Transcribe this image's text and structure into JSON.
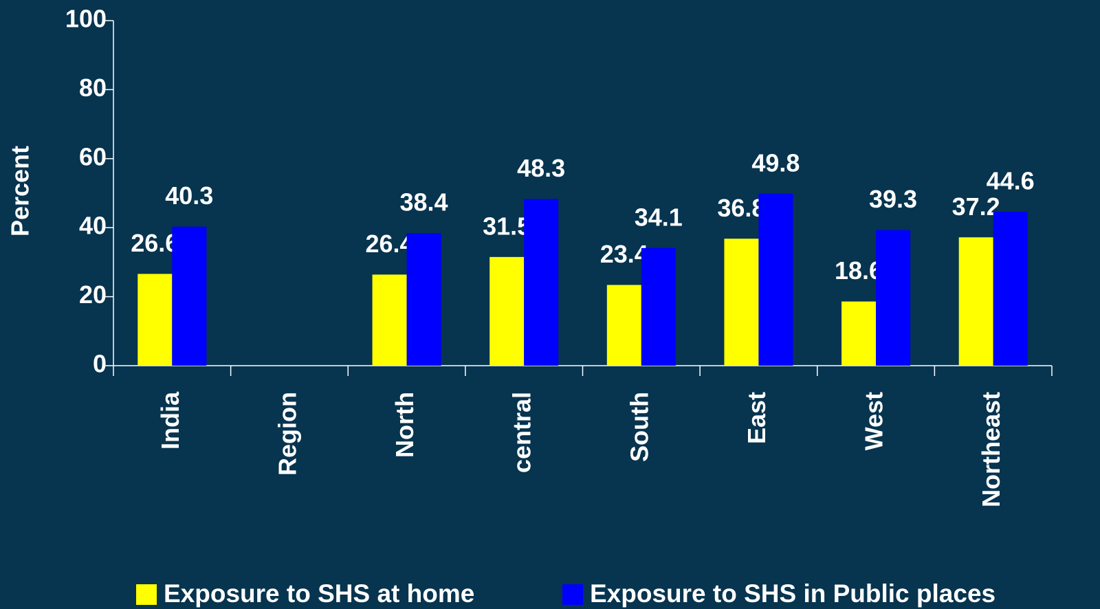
{
  "chart_data": {
    "type": "bar",
    "y_label": "Percent",
    "categories": [
      "India",
      "Region",
      "North",
      "central",
      "South",
      "East",
      "West",
      "Northeast"
    ],
    "series": [
      {
        "name": "Exposure to SHS at home",
        "color": "#ffff00",
        "values": [
          26.6,
          null,
          26.4,
          31.5,
          23.4,
          36.8,
          18.6,
          37.2
        ]
      },
      {
        "name": "Exposure to SHS in Public places",
        "color": "#0000ff",
        "values": [
          40.3,
          null,
          38.4,
          48.3,
          34.1,
          49.8,
          39.3,
          44.6
        ]
      }
    ],
    "ylim": [
      0,
      100
    ],
    "yticks": [
      0,
      20,
      40,
      60,
      80,
      100
    ],
    "legend": "bottom"
  }
}
